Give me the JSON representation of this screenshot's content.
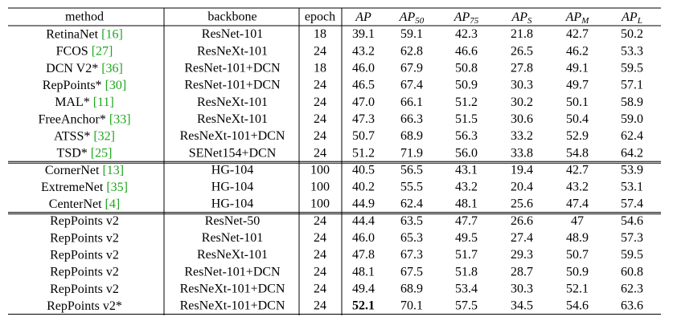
{
  "table": {
    "header": {
      "method": "method",
      "backbone": "backbone",
      "epoch": "epoch",
      "metrics": [
        {
          "main": "AP"
        },
        {
          "main": "AP",
          "sub": "50"
        },
        {
          "main": "AP",
          "sub": "75"
        },
        {
          "main": "AP",
          "sub": "S"
        },
        {
          "main": "AP",
          "sub": "M"
        },
        {
          "main": "AP",
          "sub": "L"
        }
      ]
    },
    "groups": [
      {
        "rows": [
          {
            "method": "RetinaNet",
            "ref": "[16]",
            "backbone": "ResNet-101",
            "epoch": "18",
            "metrics": [
              "39.1",
              "59.1",
              "42.3",
              "21.8",
              "42.7",
              "50.2"
            ]
          },
          {
            "method": "FCOS",
            "ref": "[27]",
            "backbone": "ResNeXt-101",
            "epoch": "24",
            "metrics": [
              "43.2",
              "62.8",
              "46.6",
              "26.5",
              "46.2",
              "53.3"
            ]
          },
          {
            "method": "DCN V2*",
            "ref": "[36]",
            "backbone": "ResNet-101+DCN",
            "epoch": "18",
            "metrics": [
              "46.0",
              "67.9",
              "50.8",
              "27.8",
              "49.1",
              "59.5"
            ]
          },
          {
            "method": "RepPoints*",
            "ref": "[30]",
            "backbone": "ResNet-101+DCN",
            "epoch": "24",
            "metrics": [
              "46.5",
              "67.4",
              "50.9",
              "30.3",
              "49.7",
              "57.1"
            ]
          },
          {
            "method": "MAL*",
            "ref": "[11]",
            "backbone": "ResNeXt-101",
            "epoch": "24",
            "metrics": [
              "47.0",
              "66.1",
              "51.2",
              "30.2",
              "50.1",
              "58.9"
            ]
          },
          {
            "method": "FreeAnchor*",
            "ref": "[33]",
            "backbone": "ResNeXt-101",
            "epoch": "24",
            "metrics": [
              "47.3",
              "66.3",
              "51.5",
              "30.6",
              "50.4",
              "59.0"
            ]
          },
          {
            "method": "ATSS*",
            "ref": "[32]",
            "backbone": "ResNeXt-101+DCN",
            "epoch": "24",
            "metrics": [
              "50.7",
              "68.9",
              "56.3",
              "33.2",
              "52.9",
              "62.4"
            ]
          },
          {
            "method": "TSD*",
            "ref": "[25]",
            "backbone": "SENet154+DCN",
            "epoch": "24",
            "metrics": [
              "51.2",
              "71.9",
              "56.0",
              "33.8",
              "54.8",
              "64.2"
            ]
          }
        ]
      },
      {
        "rows": [
          {
            "method": "CornerNet",
            "ref": "[13]",
            "backbone": "HG-104",
            "epoch": "100",
            "metrics": [
              "40.5",
              "56.5",
              "43.1",
              "19.4",
              "42.7",
              "53.9"
            ]
          },
          {
            "method": "ExtremeNet",
            "ref": "[35]",
            "backbone": "HG-104",
            "epoch": "100",
            "metrics": [
              "40.2",
              "55.5",
              "43.2",
              "20.4",
              "43.2",
              "53.1"
            ]
          },
          {
            "method": "CenterNet",
            "ref": "[4]",
            "backbone": "HG-104",
            "epoch": "100",
            "metrics": [
              "44.9",
              "62.4",
              "48.1",
              "25.6",
              "47.4",
              "57.4"
            ]
          }
        ]
      },
      {
        "rows": [
          {
            "method": "RepPoints v2",
            "backbone": "ResNet-50",
            "epoch": "24",
            "metrics": [
              "44.4",
              "63.5",
              "47.7",
              "26.6",
              "47",
              "54.6"
            ]
          },
          {
            "method": "RepPoints v2",
            "backbone": "ResNet-101",
            "epoch": "24",
            "metrics": [
              "46.0",
              "65.3",
              "49.5",
              "27.4",
              "48.9",
              "57.3"
            ]
          },
          {
            "method": "RepPoints v2",
            "backbone": "ResNeXt-101",
            "epoch": "24",
            "metrics": [
              "47.8",
              "67.3",
              "51.7",
              "29.3",
              "50.7",
              "59.5"
            ]
          },
          {
            "method": "RepPoints v2",
            "backbone": "ResNet-101+DCN",
            "epoch": "24",
            "metrics": [
              "48.1",
              "67.5",
              "51.8",
              "28.7",
              "50.9",
              "60.8"
            ]
          },
          {
            "method": "RepPoints v2",
            "backbone": "ResNeXt-101+DCN",
            "epoch": "24",
            "metrics": [
              "49.4",
              "68.9",
              "53.4",
              "30.3",
              "52.1",
              "62.3"
            ]
          },
          {
            "method": "RepPoints v2*",
            "backbone": "ResNeXt-101+DCN",
            "epoch": "24",
            "metrics": [
              "52.1",
              "70.1",
              "57.5",
              "34.5",
              "54.6",
              "63.6"
            ]
          }
        ]
      }
    ]
  }
}
